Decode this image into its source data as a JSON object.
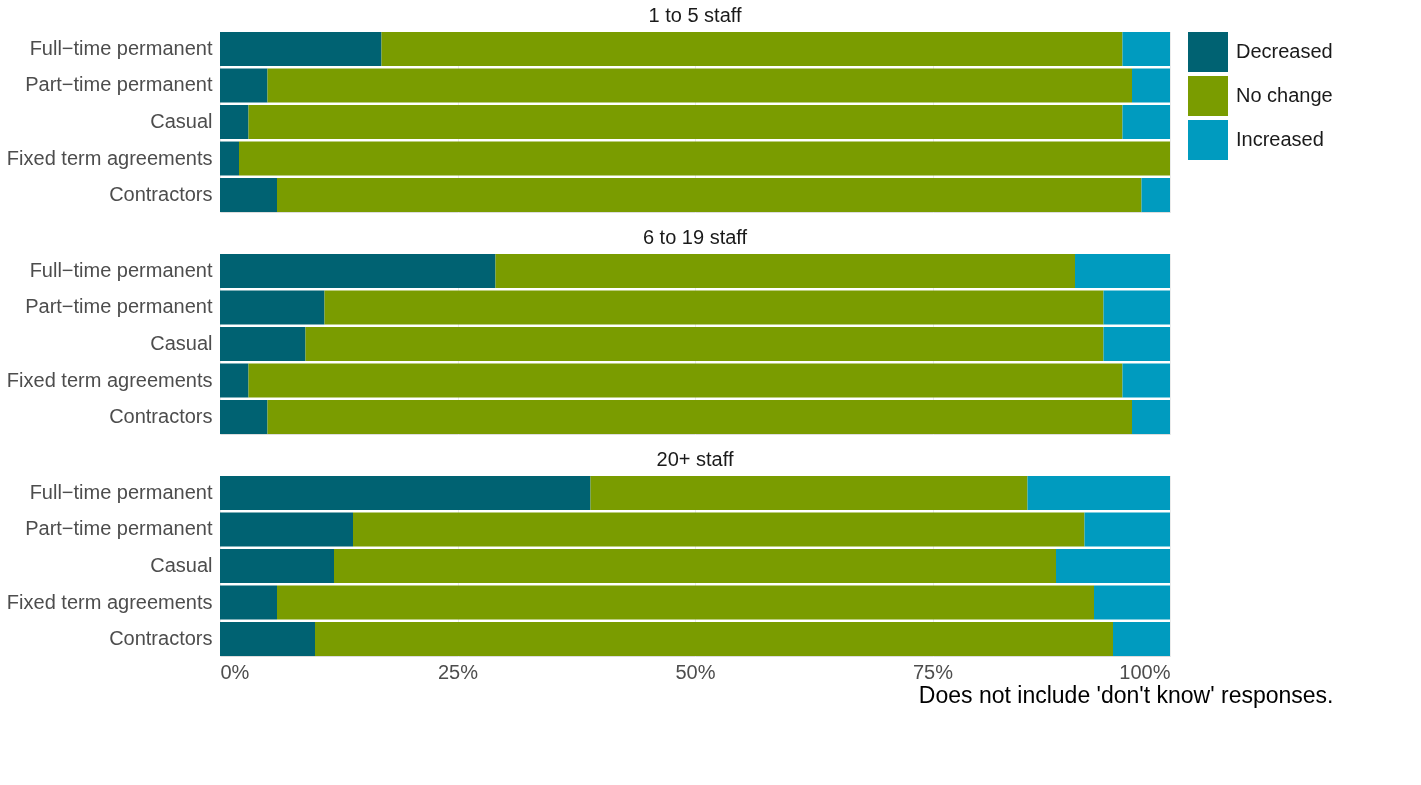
{
  "chart_data": [
    {
      "type": "bar",
      "orientation": "horizontal",
      "stacked": true,
      "title": "1 to 5 staff",
      "categories": [
        "Full−time permanent",
        "Part−time permanent",
        "Casual",
        "Fixed term agreements",
        "Contractors"
      ],
      "series": [
        {
          "name": "Decreased",
          "color": "#006272",
          "values": [
            17,
            5,
            3,
            2,
            6
          ]
        },
        {
          "name": "No change",
          "color": "#7a9c00",
          "values": [
            78,
            91,
            92,
            98,
            91
          ]
        },
        {
          "name": "Increased",
          "color": "#009bbf",
          "values": [
            5,
            4,
            5,
            0,
            3
          ]
        }
      ],
      "xlim": [
        0,
        100
      ],
      "tick_labels": "y",
      "grid": "x",
      "legend": "right"
    },
    {
      "type": "bar",
      "orientation": "horizontal",
      "stacked": true,
      "title": "6 to 19 staff",
      "categories": [
        "Full−time permanent",
        "Part−time permanent",
        "Casual",
        "Fixed term agreements",
        "Contractors"
      ],
      "series": [
        {
          "color": "#006272",
          "values": [
            29,
            11,
            9,
            3,
            5
          ]
        },
        {
          "color": "#7a9c00",
          "values": [
            61,
            82,
            84,
            92,
            91
          ]
        },
        {
          "color": "#009bbf",
          "values": [
            10,
            7,
            7,
            5,
            4
          ]
        }
      ],
      "xlim": [
        0,
        100
      ],
      "tick_labels": "y",
      "grid": "x"
    },
    {
      "type": "bar",
      "orientation": "horizontal",
      "stacked": true,
      "title": "20+ staff",
      "categories": [
        "Full−time permanent",
        "Part−time permanent",
        "Casual",
        "Fixed term agreements",
        "Contractors"
      ],
      "series": [
        {
          "color": "#006272",
          "values": [
            39,
            14,
            12,
            6,
            10
          ]
        },
        {
          "color": "#7a9c00",
          "values": [
            46,
            77,
            76,
            86,
            84
          ]
        },
        {
          "color": "#009bbf",
          "values": [
            15,
            9,
            12,
            8,
            6
          ]
        }
      ],
      "xlim": [
        0,
        100
      ],
      "xticks": [
        {
          "value": 0,
          "label": "0%"
        },
        {
          "value": 25,
          "label": "25%"
        },
        {
          "value": 50,
          "label": "50%"
        },
        {
          "value": 75,
          "label": "75%"
        },
        {
          "value": 100,
          "label": "100%"
        }
      ],
      "grid": "x",
      "annotations": [
        "Does not include 'don't know' responses."
      ]
    }
  ]
}
